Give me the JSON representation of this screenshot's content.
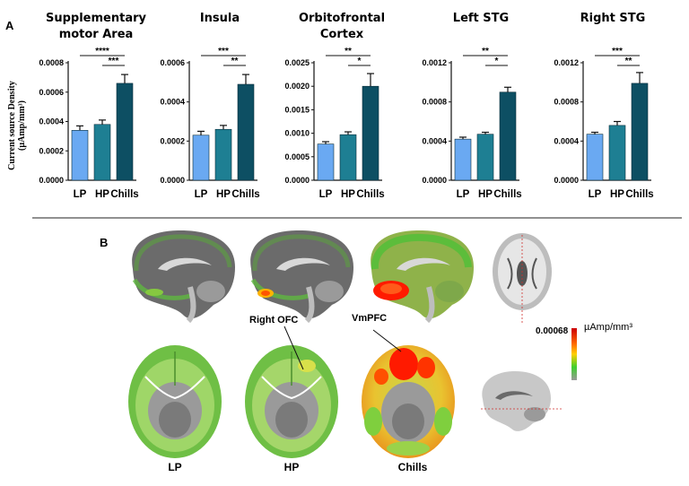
{
  "panel_a": {
    "letter": "A"
  },
  "panel_b": {
    "letter": "B",
    "conditions": [
      "LP",
      "HP",
      "Chills"
    ],
    "annotations": {
      "right_ofc": "Right OFC",
      "vmpfc": "VmPFC"
    },
    "colorbar": {
      "max_label": "0.00068",
      "unit": "µAmp/mm³",
      "colors": [
        "#cc0000",
        "#ff6a00",
        "#ffd000",
        "#3fcf2f",
        "#9a9a9a"
      ]
    }
  },
  "y_axis_label_line1": "Current source Density",
  "y_axis_label_line2": "(µAmp/mm³)",
  "colors": {
    "LP": "#6aa9f2",
    "HP": "#1e7f93",
    "Chills": "#0d4f63"
  },
  "chart_data": [
    {
      "type": "bar",
      "title_lines": [
        "Supplementary",
        "motor Area"
      ],
      "categories": [
        "LP",
        "HP",
        "Chills"
      ],
      "values": [
        0.00034,
        0.00038,
        0.00066
      ],
      "errors": [
        3e-05,
        3e-05,
        6e-05
      ],
      "ylim": [
        0,
        0.0008
      ],
      "ticks": [
        0,
        0.0002,
        0.0004,
        0.0006,
        0.0008
      ],
      "tick_labels": [
        "0.0000",
        "0.0002",
        "0.0004",
        "0.0006",
        "0.0008"
      ],
      "significance": [
        {
          "pair": [
            "LP",
            "Chills"
          ],
          "label": "****"
        },
        {
          "pair": [
            "HP",
            "Chills"
          ],
          "label": "***"
        }
      ]
    },
    {
      "type": "bar",
      "title_lines": [
        "Insula"
      ],
      "categories": [
        "LP",
        "HP",
        "Chills"
      ],
      "values": [
        0.00023,
        0.00026,
        0.00049
      ],
      "errors": [
        2e-05,
        2e-05,
        5e-05
      ],
      "ylim": [
        0,
        0.0006
      ],
      "ticks": [
        0,
        0.0002,
        0.0004,
        0.0006
      ],
      "tick_labels": [
        "0.0000",
        "0.0002",
        "0.0004",
        "0.0006"
      ],
      "significance": [
        {
          "pair": [
            "LP",
            "Chills"
          ],
          "label": "***"
        },
        {
          "pair": [
            "HP",
            "Chills"
          ],
          "label": "**"
        }
      ]
    },
    {
      "type": "bar",
      "title_lines": [
        "Orbitofrontal",
        "Cortex"
      ],
      "categories": [
        "LP",
        "HP",
        "Chills"
      ],
      "values": [
        0.00077,
        0.00097,
        0.002
      ],
      "errors": [
        5e-05,
        6e-05,
        0.00027
      ],
      "ylim": [
        0,
        0.0025
      ],
      "ticks": [
        0,
        0.0005,
        0.001,
        0.0015,
        0.002,
        0.0025
      ],
      "tick_labels": [
        "0.0000",
        "0.0005",
        "0.0010",
        "0.0015",
        "0.0020",
        "0.0025"
      ],
      "significance": [
        {
          "pair": [
            "LP",
            "Chills"
          ],
          "label": "**"
        },
        {
          "pair": [
            "HP",
            "Chills"
          ],
          "label": "*"
        }
      ]
    },
    {
      "type": "bar",
      "title_lines": [
        "Left  STG"
      ],
      "categories": [
        "LP",
        "HP",
        "Chills"
      ],
      "values": [
        0.00042,
        0.00047,
        0.0009
      ],
      "errors": [
        2e-05,
        2e-05,
        5e-05
      ],
      "ylim": [
        0,
        0.0012
      ],
      "ticks": [
        0,
        0.0004,
        0.0008,
        0.0012
      ],
      "tick_labels": [
        "0.0000",
        "0.0004",
        "0.0008",
        "0.0012"
      ],
      "significance": [
        {
          "pair": [
            "LP",
            "Chills"
          ],
          "label": "**"
        },
        {
          "pair": [
            "HP",
            "Chills"
          ],
          "label": "*"
        }
      ]
    },
    {
      "type": "bar",
      "title_lines": [
        "Right STG"
      ],
      "categories": [
        "LP",
        "HP",
        "Chills"
      ],
      "values": [
        0.00047,
        0.00056,
        0.00099
      ],
      "errors": [
        2e-05,
        4e-05,
        0.00011
      ],
      "ylim": [
        0,
        0.0012
      ],
      "ticks": [
        0,
        0.0004,
        0.0008,
        0.0012
      ],
      "tick_labels": [
        "0.0000",
        "0.0004",
        "0.0008",
        "0.0012"
      ],
      "significance": [
        {
          "pair": [
            "LP",
            "Chills"
          ],
          "label": "***"
        },
        {
          "pair": [
            "HP",
            "Chills"
          ],
          "label": "**"
        }
      ]
    }
  ]
}
